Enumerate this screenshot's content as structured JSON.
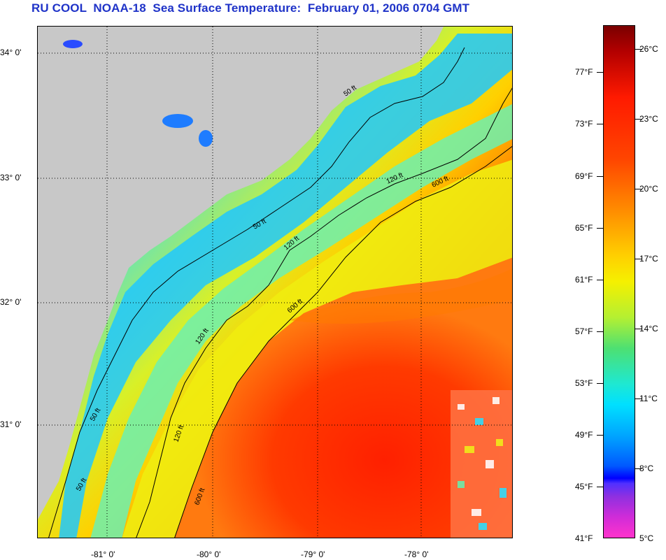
{
  "title": "RU COOL  NOAA-18  Sea Surface Temperature:  February 01, 2006 0704 GMT",
  "map": {
    "lat_ticks": [
      "34° 0'",
      "33° 0'",
      "32° 0'",
      "31° 0'"
    ],
    "lon_ticks": [
      "-81° 0'",
      "-80° 0'",
      "-79° 0'",
      "-78° 0'"
    ],
    "contour_labels": [
      "50 ft",
      "120 ft",
      "600 ft"
    ],
    "colors": {
      "land": "#c8c8c8",
      "nearshore": "#1ea8ff",
      "shelf": "#38e0f0",
      "midshelf": "#d8f028",
      "outer_shelf": "#ffd000",
      "gulf_stream": "#ff2a00"
    }
  },
  "colorbar": {
    "fahrenheit": [
      "77°F",
      "73°F",
      "69°F",
      "65°F",
      "61°F",
      "57°F",
      "53°F",
      "49°F",
      "45°F",
      "41°F"
    ],
    "celsius": [
      "26°C",
      "23°C",
      "20°C",
      "17°C",
      "14°C",
      "11°C",
      "8°C",
      "5°C"
    ]
  }
}
